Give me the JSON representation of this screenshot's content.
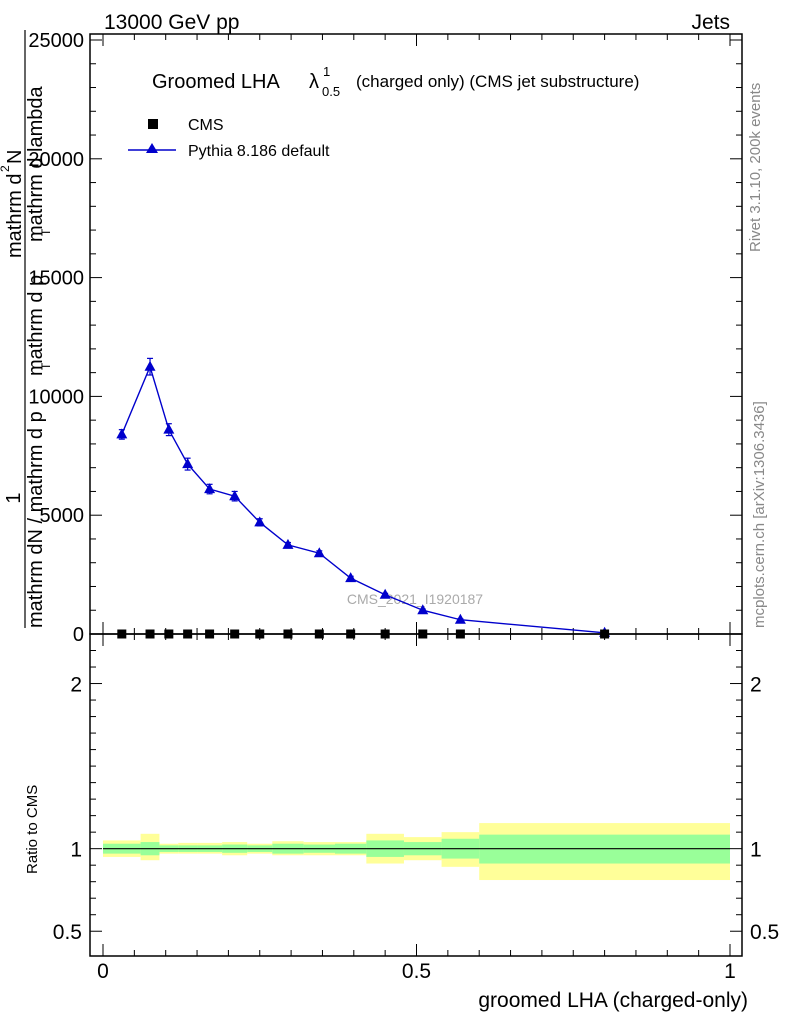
{
  "header": {
    "left": "13000 GeV pp",
    "right": "Jets"
  },
  "side_labels": {
    "rivet": "Rivet 3.1.10,  200k events",
    "mcplots": "mcplots.cern.ch [arXiv:1306.3436]"
  },
  "watermark": "CMS_2021_I1920187",
  "title": {
    "main": "Groomed LHA",
    "symbol": "λ",
    "superscript": "1",
    "subscript": "0.5",
    "suffix": "(charged only) (CMS jet substructure)"
  },
  "ylabel_top": {
    "one": "1",
    "numerator_1": "mathrm d",
    "numerator_sup": "2",
    "numerator_2": "N",
    "denominator": "mathrm dN / mathrm d p",
    "denom_sub": "T",
    "denom_rest": " mathrm d p",
    "denom_sub2": "T",
    "denom_rest2": " mathrm d lambda"
  },
  "ylabel_bottom": "Ratio to CMS",
  "xlabel": "groomed LHA (charged-only)",
  "legend": {
    "cms": "CMS",
    "pythia": "Pythia 8.186 default"
  },
  "colors": {
    "pythia": "#0000cc",
    "band_inner": "#99ff99",
    "band_outer": "#ffff99",
    "data": "#000000"
  },
  "chart_data": {
    "type": "line",
    "x_range": [
      0,
      1
    ],
    "x_ticks": [
      "0",
      "0.5",
      "1"
    ],
    "top_panel": {
      "ylim": [
        0,
        25000
      ],
      "y_ticks": [
        "0",
        "5000",
        "10000",
        "15000",
        "20000",
        "25000"
      ],
      "series": [
        {
          "name": "CMS",
          "marker": "square",
          "x": [
            0.03,
            0.075,
            0.105,
            0.135,
            0.17,
            0.21,
            0.25,
            0.295,
            0.345,
            0.395,
            0.45,
            0.51,
            0.57,
            0.8
          ],
          "values": [
            0,
            0,
            0,
            0,
            0,
            0,
            0,
            0,
            0,
            0,
            0,
            0,
            0,
            0
          ]
        },
        {
          "name": "Pythia 8.186 default",
          "marker": "triangle",
          "x": [
            0.03,
            0.075,
            0.105,
            0.135,
            0.17,
            0.21,
            0.25,
            0.295,
            0.345,
            0.395,
            0.45,
            0.51,
            0.57,
            0.8
          ],
          "values": [
            8400,
            11250,
            8600,
            7150,
            6100,
            5800,
            4700,
            3750,
            3400,
            2350,
            1650,
            1000,
            600,
            50
          ],
          "errors": [
            200,
            350,
            250,
            250,
            200,
            200,
            150,
            100,
            100,
            80,
            60,
            50,
            40,
            10
          ]
        }
      ]
    },
    "bottom_panel": {
      "ylim": [
        0.35,
        2.3
      ],
      "y_ticks": [
        "0.5",
        "1",
        "2"
      ],
      "reference": 1,
      "bins": [
        {
          "x0": 0.0,
          "x1": 0.06,
          "inner": [
            0.97,
            1.03
          ],
          "outer": [
            0.95,
            1.05
          ]
        },
        {
          "x0": 0.06,
          "x1": 0.09,
          "inner": [
            0.96,
            1.04
          ],
          "outer": [
            0.93,
            1.09
          ]
        },
        {
          "x0": 0.09,
          "x1": 0.12,
          "inner": [
            0.98,
            1.02
          ],
          "outer": [
            0.97,
            1.03
          ]
        },
        {
          "x0": 0.12,
          "x1": 0.15,
          "inner": [
            0.98,
            1.02
          ],
          "outer": [
            0.97,
            1.035
          ]
        },
        {
          "x0": 0.15,
          "x1": 0.19,
          "inner": [
            0.98,
            1.02
          ],
          "outer": [
            0.97,
            1.035
          ]
        },
        {
          "x0": 0.19,
          "x1": 0.23,
          "inner": [
            0.975,
            1.025
          ],
          "outer": [
            0.96,
            1.04
          ]
        },
        {
          "x0": 0.23,
          "x1": 0.27,
          "inner": [
            0.98,
            1.02
          ],
          "outer": [
            0.97,
            1.03
          ]
        },
        {
          "x0": 0.27,
          "x1": 0.32,
          "inner": [
            0.97,
            1.03
          ],
          "outer": [
            0.96,
            1.045
          ]
        },
        {
          "x0": 0.32,
          "x1": 0.37,
          "inner": [
            0.975,
            1.025
          ],
          "outer": [
            0.96,
            1.04
          ]
        },
        {
          "x0": 0.37,
          "x1": 0.42,
          "inner": [
            0.97,
            1.03
          ],
          "outer": [
            0.96,
            1.04
          ]
        },
        {
          "x0": 0.42,
          "x1": 0.48,
          "inner": [
            0.95,
            1.05
          ],
          "outer": [
            0.91,
            1.09
          ]
        },
        {
          "x0": 0.48,
          "x1": 0.54,
          "inner": [
            0.96,
            1.04
          ],
          "outer": [
            0.93,
            1.07
          ]
        },
        {
          "x0": 0.54,
          "x1": 0.6,
          "inner": [
            0.94,
            1.06
          ],
          "outer": [
            0.89,
            1.1
          ]
        },
        {
          "x0": 0.6,
          "x1": 1.0,
          "inner": [
            0.91,
            1.085
          ],
          "outer": [
            0.81,
            1.155
          ]
        }
      ]
    }
  }
}
